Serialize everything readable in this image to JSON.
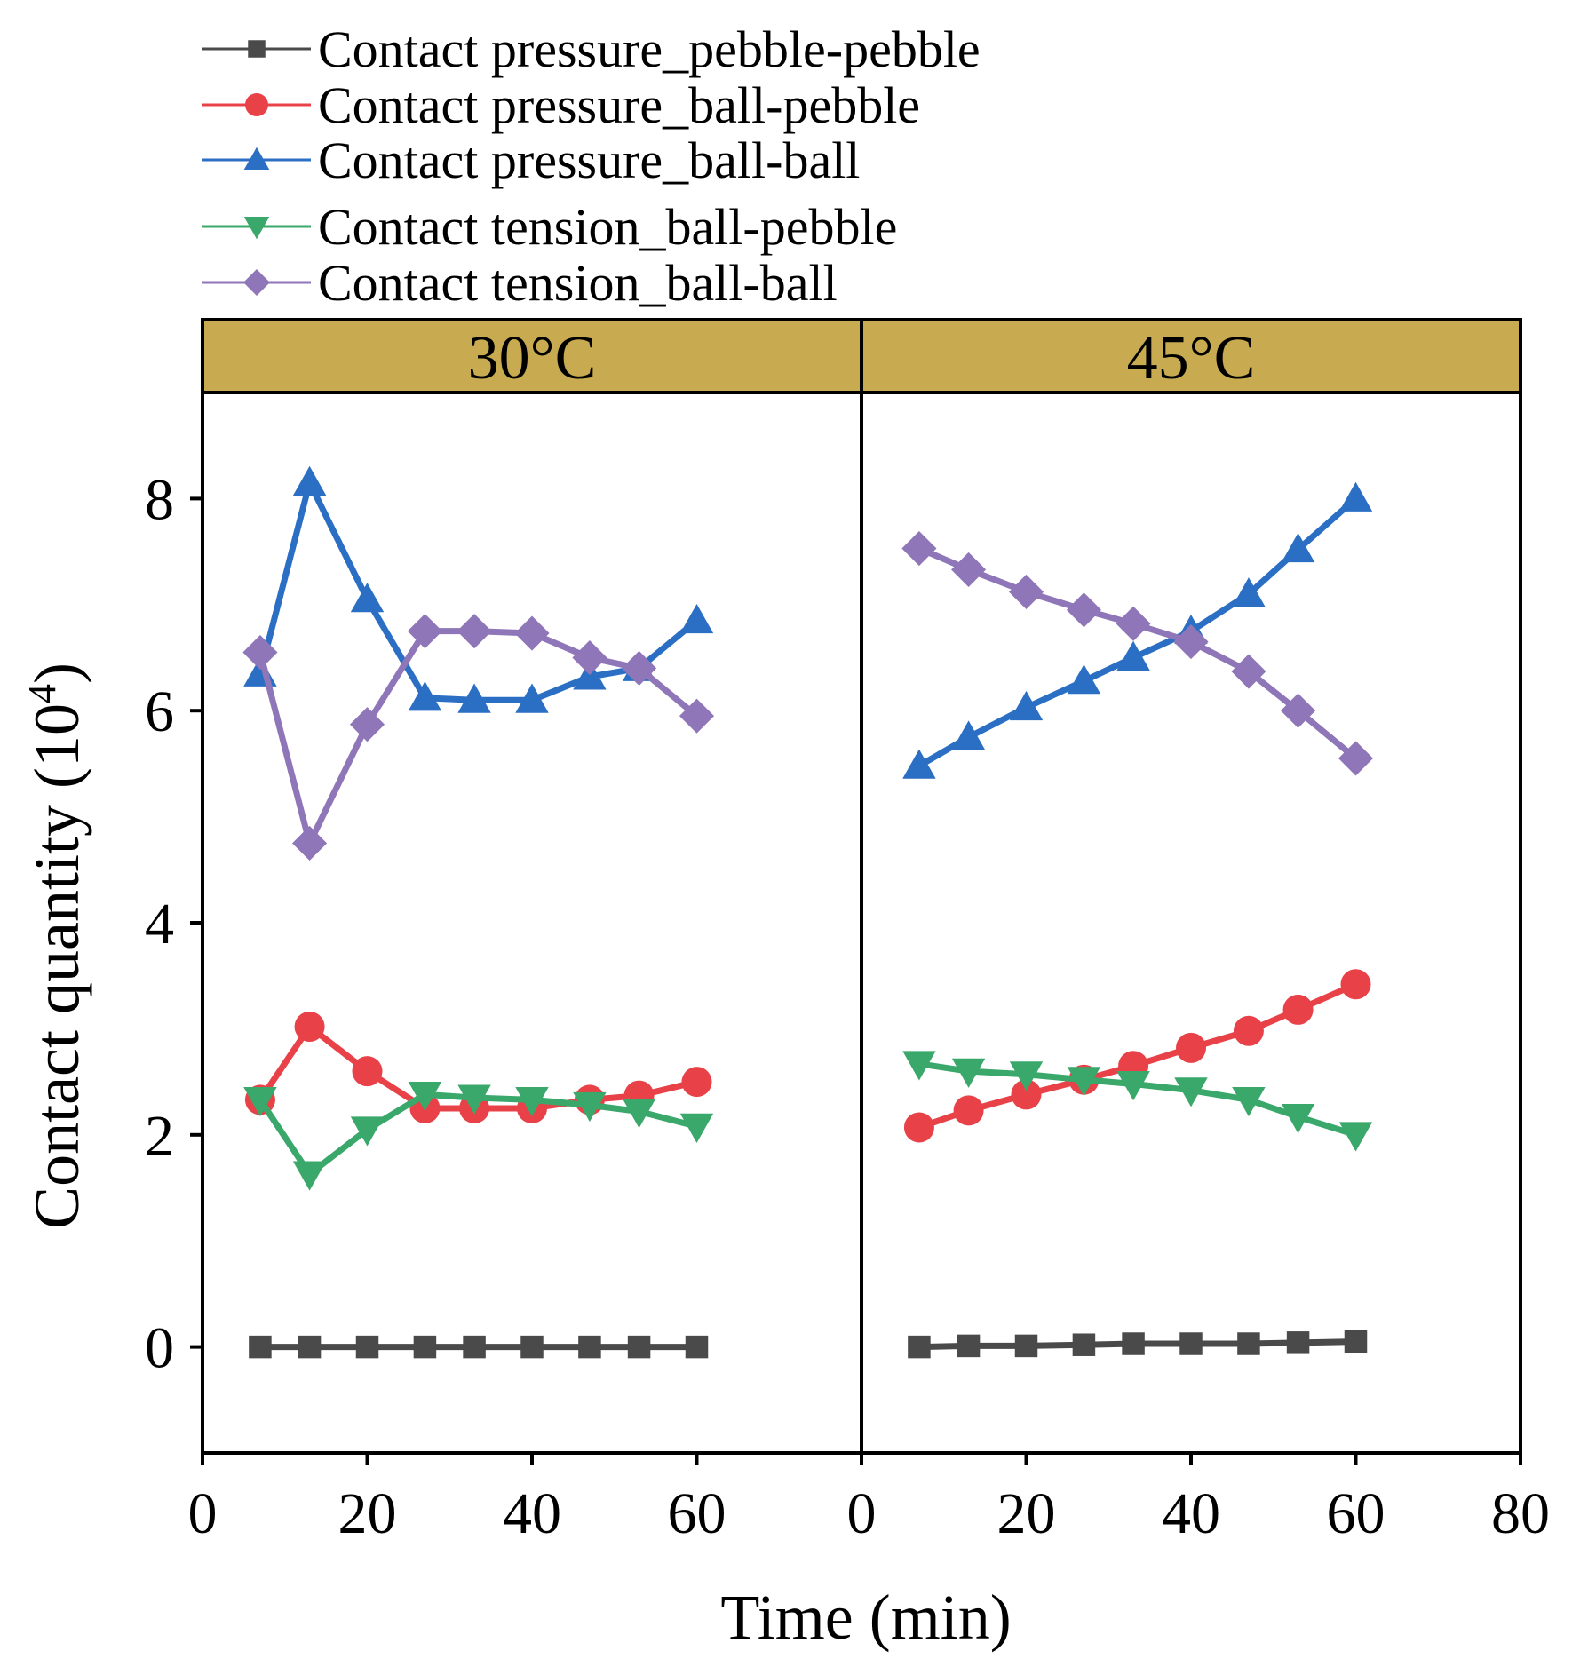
{
  "chart_data": {
    "type": "line",
    "xlabel": "Time (min)",
    "ylabel_main": "Contact quantity (10",
    "ylabel_exp": "4",
    "ylabel_close": ")",
    "ylim": [
      -1,
      9
    ],
    "yticks": [
      0,
      2,
      4,
      6,
      8
    ],
    "panels": [
      {
        "label": "30°C",
        "xlim": [
          0,
          80
        ],
        "xticks": [
          0,
          20,
          40,
          60
        ],
        "series": [
          {
            "name": "Contact pressure_pebble-pebble",
            "color": "#4a4a4a",
            "marker": "square",
            "x": [
              7,
              13,
              20,
              27,
              33,
              40,
              47,
              53,
              60
            ],
            "y": [
              0.0,
              0.0,
              0.0,
              0.0,
              0.0,
              0.0,
              0.0,
              0.0,
              0.0
            ]
          },
          {
            "name": "Contact pressure_ball-pebble",
            "color": "#e84148",
            "marker": "circle",
            "x": [
              7,
              13,
              20,
              27,
              33,
              40,
              47,
              53,
              60
            ],
            "y": [
              2.33,
              3.02,
              2.6,
              2.25,
              2.25,
              2.25,
              2.33,
              2.37,
              2.5
            ]
          },
          {
            "name": "Contact pressure_ball-ball",
            "color": "#2b6fc4",
            "marker": "triangle-up",
            "x": [
              7,
              13,
              20,
              27,
              33,
              40,
              47,
              53,
              60
            ],
            "y": [
              6.35,
              8.15,
              7.05,
              6.12,
              6.1,
              6.1,
              6.32,
              6.4,
              6.85
            ]
          },
          {
            "name": "Contact tension_ball-pebble",
            "color": "#3aa86a",
            "marker": "triangle-down",
            "x": [
              7,
              13,
              20,
              27,
              33,
              40,
              47,
              53,
              60
            ],
            "y": [
              2.33,
              1.63,
              2.05,
              2.38,
              2.35,
              2.33,
              2.28,
              2.22,
              2.08
            ]
          },
          {
            "name": "Contact tension_ball-ball",
            "color": "#8f76b8",
            "marker": "diamond",
            "x": [
              7,
              13,
              20,
              27,
              33,
              40,
              47,
              53,
              60
            ],
            "y": [
              6.55,
              4.75,
              5.87,
              6.75,
              6.75,
              6.73,
              6.5,
              6.4,
              5.95
            ]
          }
        ]
      },
      {
        "label": "45°C",
        "xlim": [
          0,
          80
        ],
        "xticks": [
          0,
          20,
          40,
          60,
          80
        ],
        "series": [
          {
            "name": "Contact pressure_pebble-pebble",
            "color": "#4a4a4a",
            "marker": "square",
            "x": [
              7,
              13,
              20,
              27,
              33,
              40,
              47,
              53,
              60
            ],
            "y": [
              0.0,
              0.01,
              0.01,
              0.02,
              0.03,
              0.03,
              0.03,
              0.04,
              0.05
            ]
          },
          {
            "name": "Contact pressure_ball-pebble",
            "color": "#e84148",
            "marker": "circle",
            "x": [
              7,
              13,
              20,
              27,
              33,
              40,
              47,
              53,
              60
            ],
            "y": [
              2.07,
              2.23,
              2.38,
              2.52,
              2.65,
              2.82,
              2.98,
              3.18,
              3.42
            ]
          },
          {
            "name": "Contact pressure_ball-ball",
            "color": "#2b6fc4",
            "marker": "triangle-up",
            "x": [
              7,
              13,
              20,
              27,
              33,
              40,
              47,
              53,
              60
            ],
            "y": [
              5.48,
              5.75,
              6.03,
              6.28,
              6.5,
              6.75,
              7.1,
              7.52,
              8.0
            ]
          },
          {
            "name": "Contact tension_ball-pebble",
            "color": "#3aa86a",
            "marker": "triangle-down",
            "x": [
              7,
              13,
              20,
              27,
              33,
              40,
              47,
              53,
              60
            ],
            "y": [
              2.67,
              2.6,
              2.57,
              2.52,
              2.48,
              2.42,
              2.33,
              2.17,
              2.0
            ]
          },
          {
            "name": "Contact tension_ball-ball",
            "color": "#8f76b8",
            "marker": "diamond",
            "x": [
              7,
              13,
              20,
              27,
              33,
              40,
              47,
              53,
              60
            ],
            "y": [
              7.53,
              7.33,
              7.12,
              6.95,
              6.82,
              6.65,
              6.37,
              6.0,
              5.55
            ]
          }
        ]
      }
    ],
    "legend": {
      "placement": "top",
      "entries": [
        {
          "label": "Contact pressure_pebble-pebble",
          "color": "#4a4a4a",
          "marker": "square"
        },
        {
          "label": "Contact pressure_ball-pebble",
          "color": "#e84148",
          "marker": "circle"
        },
        {
          "label": "Contact pressure_ball-ball",
          "color": "#2b6fc4",
          "marker": "triangle-up"
        },
        {
          "label": "Contact tension_ball-pebble",
          "color": "#3aa86a",
          "marker": "triangle-down"
        },
        {
          "label": "Contact tension_ball-ball",
          "color": "#8f76b8",
          "marker": "diamond"
        }
      ]
    },
    "panel_header_color": "#c8aa50"
  }
}
